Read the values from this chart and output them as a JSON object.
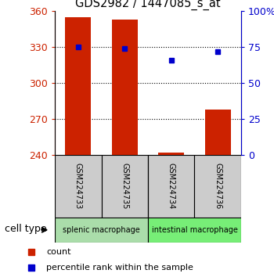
{
  "title": "GDS2982 / 1447085_s_at",
  "samples": [
    "GSM224733",
    "GSM224735",
    "GSM224734",
    "GSM224736"
  ],
  "count_values": [
    355,
    353,
    242,
    278
  ],
  "percentile_values": [
    75,
    74,
    66,
    72
  ],
  "ylim_left": [
    240,
    360
  ],
  "ylim_right": [
    0,
    100
  ],
  "yticks_left": [
    240,
    270,
    300,
    330,
    360
  ],
  "yticks_right": [
    0,
    25,
    50,
    75,
    100
  ],
  "ytick_labels_right": [
    "0",
    "25",
    "50",
    "75",
    "100%"
  ],
  "bar_color": "#CC2200",
  "marker_color": "#0000CC",
  "cell_types": [
    "splenic macrophage",
    "intestinal macrophage"
  ],
  "cell_type_color1": "#AADDAA",
  "cell_type_color2": "#77EE77",
  "label_count": "count",
  "label_percentile": "percentile rank within the sample",
  "cell_type_label": "cell type",
  "sample_box_color": "#CCCCCC"
}
